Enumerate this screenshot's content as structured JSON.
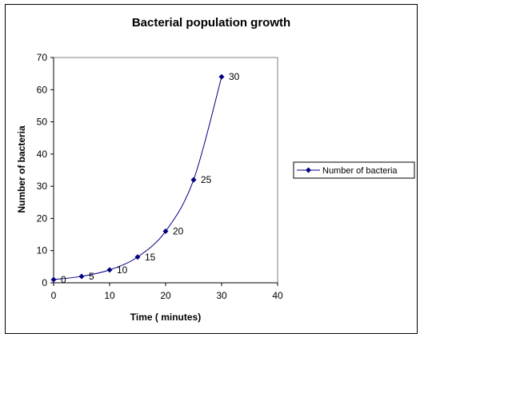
{
  "chart_data": {
    "type": "scatter",
    "title": "Bacterial population growth",
    "xlabel": "Time ( minutes)",
    "ylabel": "Number of bacteria",
    "xlim": [
      0,
      40
    ],
    "ylim": [
      0,
      70
    ],
    "x_ticks": [
      0,
      10,
      20,
      30,
      40
    ],
    "y_ticks": [
      0,
      10,
      20,
      30,
      40,
      50,
      60,
      70
    ],
    "grid": false,
    "smoothed_line": true,
    "legend_position": "right",
    "series": [
      {
        "name": "Number of bacteria",
        "color": "#000080",
        "marker": "diamond",
        "x": [
          0,
          5,
          10,
          15,
          20,
          25,
          30
        ],
        "y": [
          1,
          2,
          4,
          8,
          16,
          32,
          64
        ],
        "data_labels": [
          "0",
          "5",
          "10",
          "15",
          "20",
          "25",
          "30"
        ]
      }
    ]
  }
}
